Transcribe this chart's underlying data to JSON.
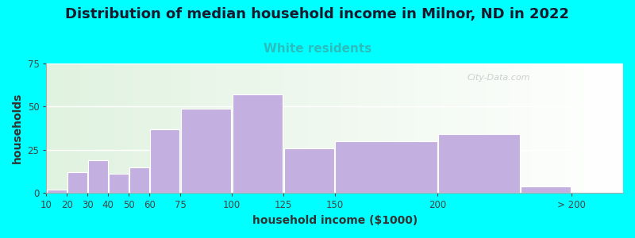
{
  "title": "Distribution of median household income in Milnor, ND in 2022",
  "subtitle": "White residents",
  "xlabel": "household income ($1000)",
  "ylabel": "households",
  "bg_color": "#00FFFF",
  "bar_color": "#C4B0E0",
  "subtitle_color": "#2ABFBF",
  "title_color": "#1a1a2e",
  "watermark": "City-Data.com",
  "ylim": [
    0,
    75
  ],
  "yticks": [
    0,
    25,
    50,
    75
  ],
  "bar_lefts": [
    10,
    20,
    30,
    40,
    50,
    60,
    75,
    100,
    125,
    150,
    200,
    240
  ],
  "bar_widths": [
    10,
    10,
    10,
    10,
    10,
    15,
    25,
    25,
    25,
    50,
    40,
    25
  ],
  "values": [
    2,
    12,
    19,
    11,
    15,
    37,
    49,
    57,
    26,
    30,
    34,
    4
  ],
  "xtick_positions": [
    10,
    20,
    30,
    40,
    50,
    60,
    75,
    100,
    125,
    150,
    200,
    265
  ],
  "xtick_labels": [
    "10",
    "20",
    "30",
    "40",
    "50",
    "60",
    "75",
    "100",
    "125",
    "150",
    "200",
    "> 200"
  ],
  "xlim": [
    10,
    290
  ],
  "title_fontsize": 13,
  "subtitle_fontsize": 11,
  "axis_label_fontsize": 10,
  "tick_fontsize": 8.5
}
